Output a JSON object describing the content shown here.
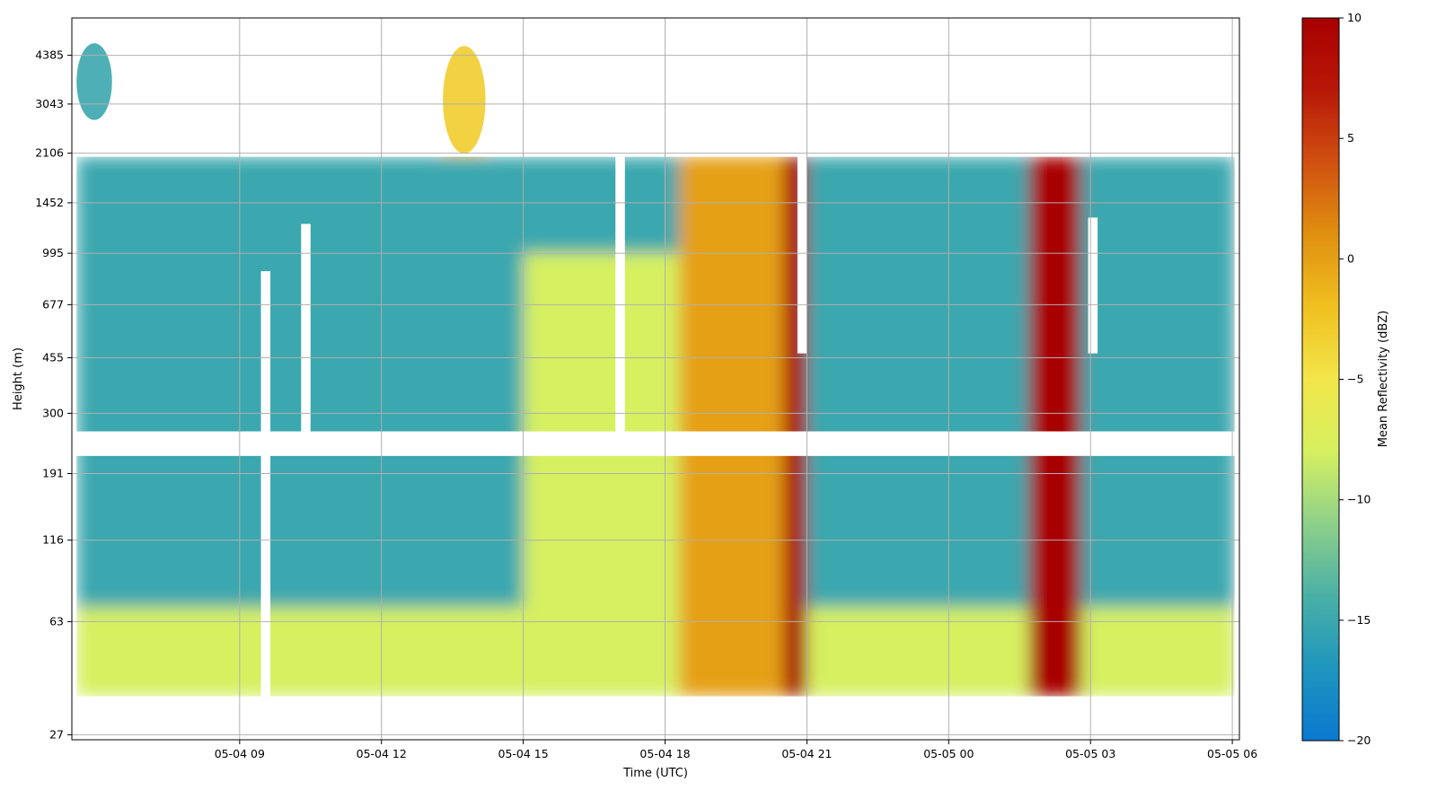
{
  "chart_data": {
    "type": "heatmap",
    "title": "",
    "xlabel": "Time (UTC)",
    "ylabel": "Height (m)",
    "x_unit": "hours since 2024-05-04 00:00 UTC",
    "xlim": [
      5.45,
      30.15
    ],
    "x_ticks": [
      {
        "value": 9,
        "label": "05-04 09"
      },
      {
        "value": 12,
        "label": "05-04 12"
      },
      {
        "value": 15,
        "label": "05-04 15"
      },
      {
        "value": 18,
        "label": "05-04 18"
      },
      {
        "value": 21,
        "label": "05-04 21"
      },
      {
        "value": 24,
        "label": "05-05 00"
      },
      {
        "value": 27,
        "label": "05-05 03"
      },
      {
        "value": 30,
        "label": "05-05 06"
      }
    ],
    "y_scale": "log",
    "ylim": [
      26,
      5800
    ],
    "y_ticks": [
      27,
      63,
      116,
      191,
      300,
      455,
      677,
      995,
      1452,
      2106,
      3043,
      4385
    ],
    "grid": true,
    "colorbar": {
      "label": "Mean Reflectivity (dBZ)",
      "min": -20,
      "max": 10,
      "ticks": [
        10,
        5,
        0,
        -5,
        -10,
        -15,
        -20
      ],
      "colormap": [
        "#0a78d0",
        "#1e96be",
        "#4ab0a6",
        "#8ed08a",
        "#d6f060",
        "#f2e64a",
        "#f0c020",
        "#e09010",
        "#d05010",
        "#b81808",
        "#a80000"
      ]
    },
    "data_range": {
      "x": [
        5.55,
        30.05
      ],
      "y": [
        36,
        2050
      ]
    },
    "gaps": [
      {
        "x": [
          9.45,
          9.65
        ],
        "y": [
          36,
          870
        ]
      },
      {
        "x": [
          10.3,
          10.5
        ],
        "y": [
          230,
          1240
        ]
      },
      {
        "x": [
          16.95,
          17.15
        ],
        "y": [
          240,
          2050
        ]
      },
      {
        "x": [
          20.8,
          21.0
        ],
        "y": [
          470,
          2050
        ]
      },
      {
        "x": [
          26.95,
          27.15
        ],
        "y": [
          470,
          1300
        ]
      }
    ],
    "gap_height_band": [
      218,
      262
    ],
    "series": [
      {
        "name": "",
        "description_region": "background low",
        "x": [
          5.55,
          30.05
        ],
        "y": [
          36,
          2050
        ],
        "dbz": -15
      },
      {
        "region": "surface layer",
        "x": [
          5.55,
          30.05
        ],
        "y": [
          36,
          70
        ],
        "dbz": -8
      },
      {
        "region": "daytime mixed layer",
        "x": [
          15.0,
          19.0
        ],
        "y": [
          36,
          1000
        ],
        "dbz": -8
      },
      {
        "region": "precip column A",
        "x": [
          20.5,
          21.0
        ],
        "y": [
          36,
          2050
        ],
        "dbz": 10
      },
      {
        "region": "precip column B",
        "x": [
          25.7,
          26.8
        ],
        "y": [
          36,
          2050
        ],
        "dbz": 10
      },
      {
        "region": "precip streaks",
        "x": [
          18.3,
          20.5
        ],
        "y": [
          36,
          2050
        ],
        "dbz": 0
      },
      {
        "region": "elevated cloud",
        "x": [
          13.3,
          14.2
        ],
        "y": [
          2100,
          4700
        ],
        "dbz": -3
      },
      {
        "region": "high cloud left",
        "x": [
          5.55,
          6.3
        ],
        "y": [
          2700,
          4800
        ],
        "dbz": -15
      }
    ]
  }
}
